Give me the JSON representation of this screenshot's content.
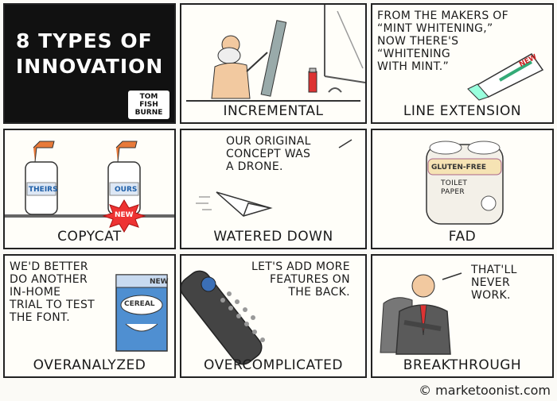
{
  "header": {
    "title": "8 TYPES OF\nINNOVATION",
    "author": "TOM\nFISH\nBURNE"
  },
  "panels": [
    {
      "caption": "INCREMENTAL",
      "speech": ""
    },
    {
      "caption": "LINE EXTENSION",
      "speech": "FROM THE MAKERS OF\n“MINT WHITENING,”\nNOW THERE'S\n“WHITENING\nWITH MINT.”",
      "product_label": "NEW"
    },
    {
      "caption": "COPYCAT",
      "labels": [
        "THEIRS",
        "OURS"
      ],
      "burst": "NEW"
    },
    {
      "caption": "WATERED DOWN",
      "speech": "OUR ORIGINAL\nCONCEPT WAS\nA DRONE."
    },
    {
      "caption": "FAD",
      "product_label": "GLUTEN-FREE",
      "product_sub": "TOILET\nPAPER"
    },
    {
      "caption": "OVERANALYZED",
      "speech": "WE'D BETTER\nDO ANOTHER\nIN-HOME\nTRIAL TO TEST\nTHE FONT.",
      "box_label": "CEREAL",
      "box_tag": "NEW"
    },
    {
      "caption": "OVERCOMPLICATED",
      "speech": "LET'S ADD MORE\nFEATURES ON\nTHE BACK."
    },
    {
      "caption": "BREAKTHROUGH",
      "speech": "THAT'LL\nNEVER\nWORK."
    }
  ],
  "credit": "© marketoonist.com"
}
